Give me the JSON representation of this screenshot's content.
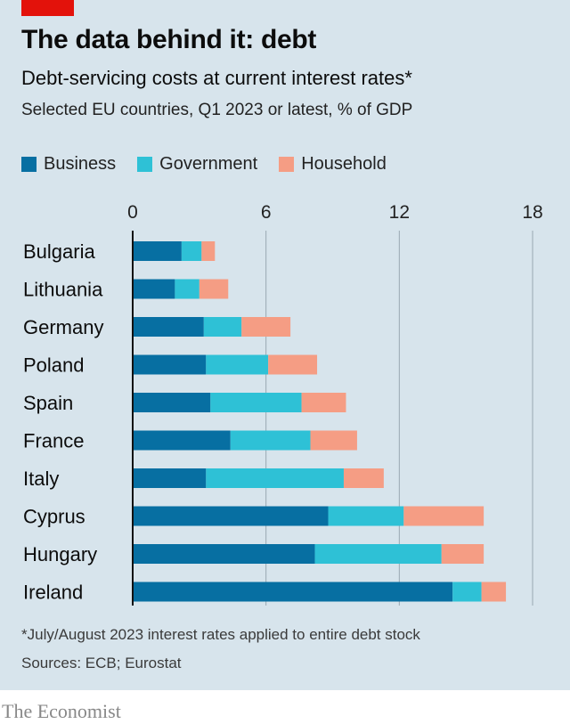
{
  "header": {
    "title": "The data behind it: debt",
    "subtitle": "Debt-servicing costs at current interest rates*",
    "description": "Selected EU countries, Q1 2023 or latest, % of GDP"
  },
  "legend": [
    {
      "label": "Business",
      "color": "#076fa2"
    },
    {
      "label": "Government",
      "color": "#2ec1d6"
    },
    {
      "label": "Household",
      "color": "#f59d84"
    }
  ],
  "chart_data": {
    "type": "bar",
    "orientation": "horizontal",
    "stacked": true,
    "categories": [
      "Bulgaria",
      "Lithuania",
      "Germany",
      "Poland",
      "Spain",
      "France",
      "Italy",
      "Cyprus",
      "Hungary",
      "Ireland"
    ],
    "series": [
      {
        "name": "Business",
        "color": "#076fa2",
        "values": [
          2.2,
          1.9,
          3.2,
          3.3,
          3.5,
          4.4,
          3.3,
          8.8,
          8.2,
          14.4
        ]
      },
      {
        "name": "Government",
        "color": "#2ec1d6",
        "values": [
          0.9,
          1.1,
          1.7,
          2.8,
          4.1,
          3.6,
          6.2,
          3.4,
          5.7,
          1.3
        ]
      },
      {
        "name": "Household",
        "color": "#f59d84",
        "values": [
          0.6,
          1.3,
          2.2,
          2.2,
          2.0,
          2.1,
          1.8,
          3.6,
          1.9,
          1.1
        ]
      }
    ],
    "xlim": [
      0,
      18
    ],
    "xticks": [
      0,
      6,
      12,
      18
    ],
    "grid": true
  },
  "footnote": "*July/August 2023 interest rates applied to entire debt stock",
  "source": "Sources: ECB; Eurostat",
  "brand": "The Economist"
}
